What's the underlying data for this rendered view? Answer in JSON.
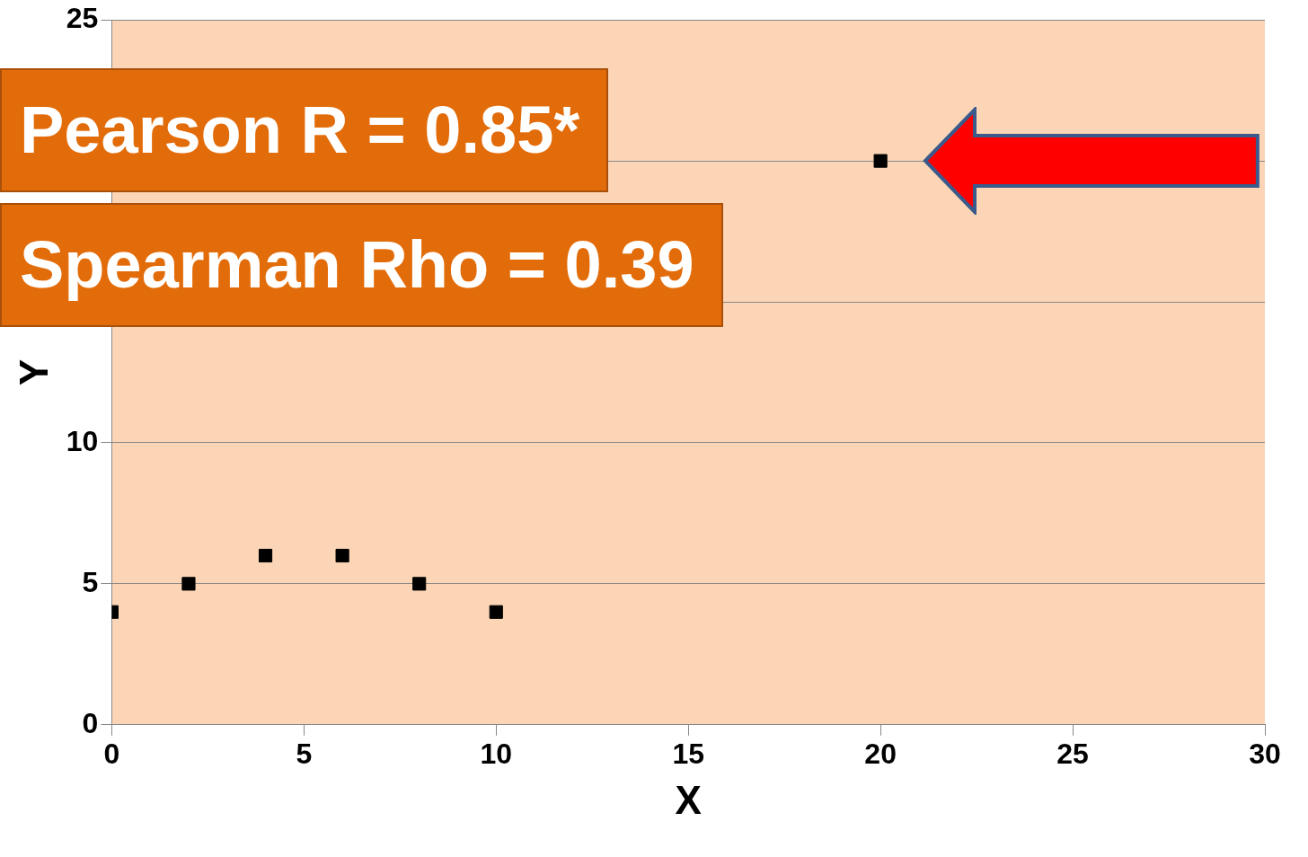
{
  "chart_data": {
    "type": "scatter",
    "xlabel": "X",
    "ylabel": "Y",
    "annotations": [
      "Pearson R = 0.85*",
      "Spearman Rho = 0.39"
    ],
    "series": [
      {
        "color": "#000000",
        "x": [
          0,
          2,
          4,
          6,
          8,
          10,
          20
        ],
        "values": [
          4,
          5,
          6,
          6,
          5,
          4,
          20
        ]
      }
    ],
    "xlim": [
      0,
      30
    ],
    "xticks": [
      0,
      5,
      10,
      15,
      20,
      25,
      30
    ],
    "ylim": [
      0,
      25
    ],
    "yticks": [
      0,
      5,
      10,
      {
        "value": 15,
        "label": null
      },
      {
        "value": 20,
        "label": null
      },
      25
    ],
    "grid": "y",
    "legend": false,
    "marker": "square"
  }
}
